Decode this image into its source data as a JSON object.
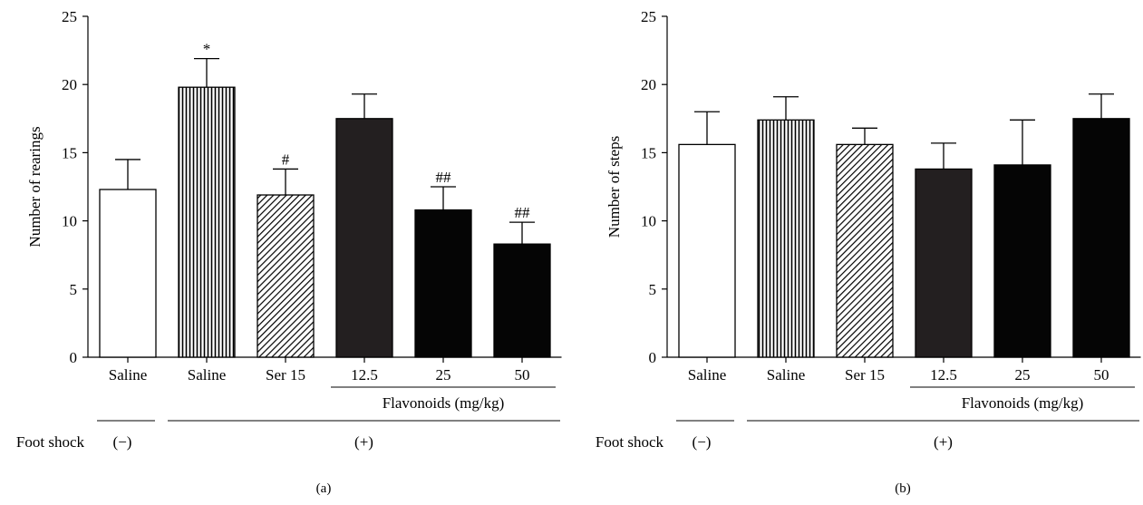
{
  "chart_data": [
    {
      "type": "bar",
      "panel_label": "(a)",
      "categories": [
        "Saline",
        "Saline",
        "Ser 15",
        "12.5",
        "25",
        "50"
      ],
      "values": [
        12.3,
        19.8,
        11.9,
        17.5,
        10.8,
        8.3
      ],
      "errors": [
        2.2,
        2.1,
        1.9,
        1.8,
        1.7,
        1.6
      ],
      "annotations": [
        "",
        "*",
        "#",
        "",
        "##",
        "##"
      ],
      "bar_colors": [
        "#ffffff",
        "vert",
        "diag",
        "#231f20",
        "#050505",
        "#050505"
      ],
      "ylabel": "Number of rearings",
      "ylim": [
        0,
        25
      ],
      "yticks": [
        0,
        5,
        10,
        15,
        20,
        25
      ],
      "group_label": "Flavonoids (mg/kg)",
      "footshock_label": "Foot shock",
      "footshock_minus": "(−)",
      "footshock_plus": "(+)"
    },
    {
      "type": "bar",
      "panel_label": "(b)",
      "categories": [
        "Saline",
        "Saline",
        "Ser 15",
        "12.5",
        "25",
        "50"
      ],
      "values": [
        15.6,
        17.4,
        15.6,
        13.8,
        14.1,
        17.5
      ],
      "errors": [
        2.4,
        1.7,
        1.2,
        1.9,
        3.3,
        1.8
      ],
      "annotations": [
        "",
        "",
        "",
        "",
        "",
        ""
      ],
      "bar_colors": [
        "#ffffff",
        "vert",
        "diag",
        "#231f20",
        "#050505",
        "#050505"
      ],
      "ylabel": "Number of steps",
      "ylim": [
        0,
        25
      ],
      "yticks": [
        0,
        5,
        10,
        15,
        20,
        25
      ],
      "group_label": "Flavonoids (mg/kg)",
      "footshock_label": "Foot shock",
      "footshock_minus": "(−)",
      "footshock_plus": "(+)"
    }
  ]
}
